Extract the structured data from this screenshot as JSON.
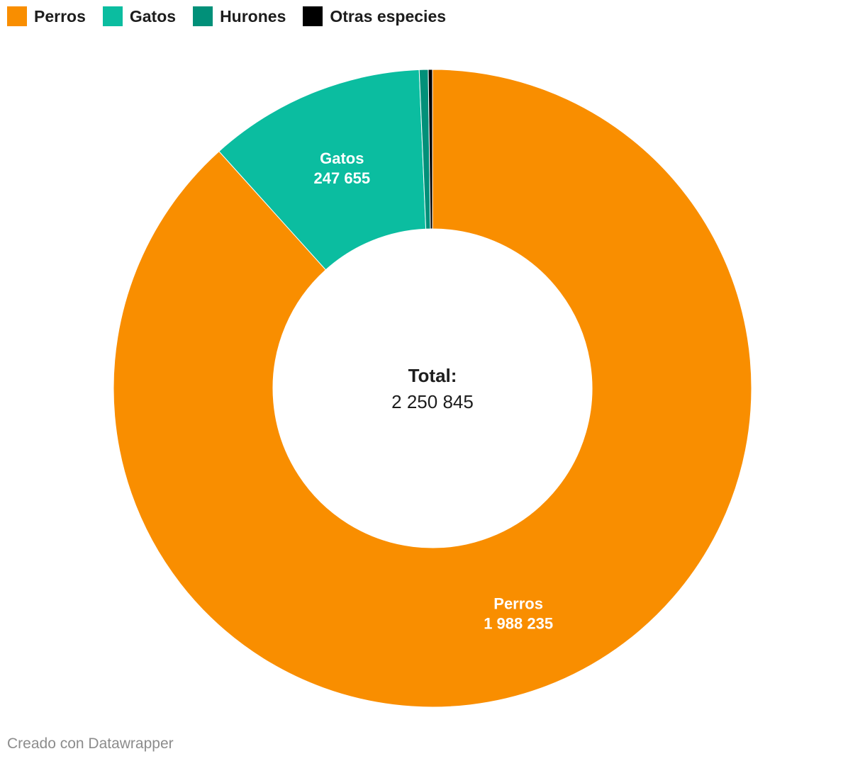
{
  "chart_data": {
    "type": "pie",
    "series": [
      {
        "name": "Perros",
        "value": 1988235,
        "label": "1 988 235",
        "color": "#f98e00"
      },
      {
        "name": "Gatos",
        "value": 247655,
        "label": "247 655",
        "color": "#0bbda0"
      },
      {
        "name": "Hurones",
        "value": 10200,
        "label": "",
        "color": "#019079"
      },
      {
        "name": "Otras especies",
        "value": 4755,
        "label": "",
        "color": "#000000"
      }
    ],
    "center": {
      "title": "Total:",
      "value": "2 250 845"
    },
    "legend_position": "top-left"
  },
  "footer": "Creado con Datawrapper"
}
